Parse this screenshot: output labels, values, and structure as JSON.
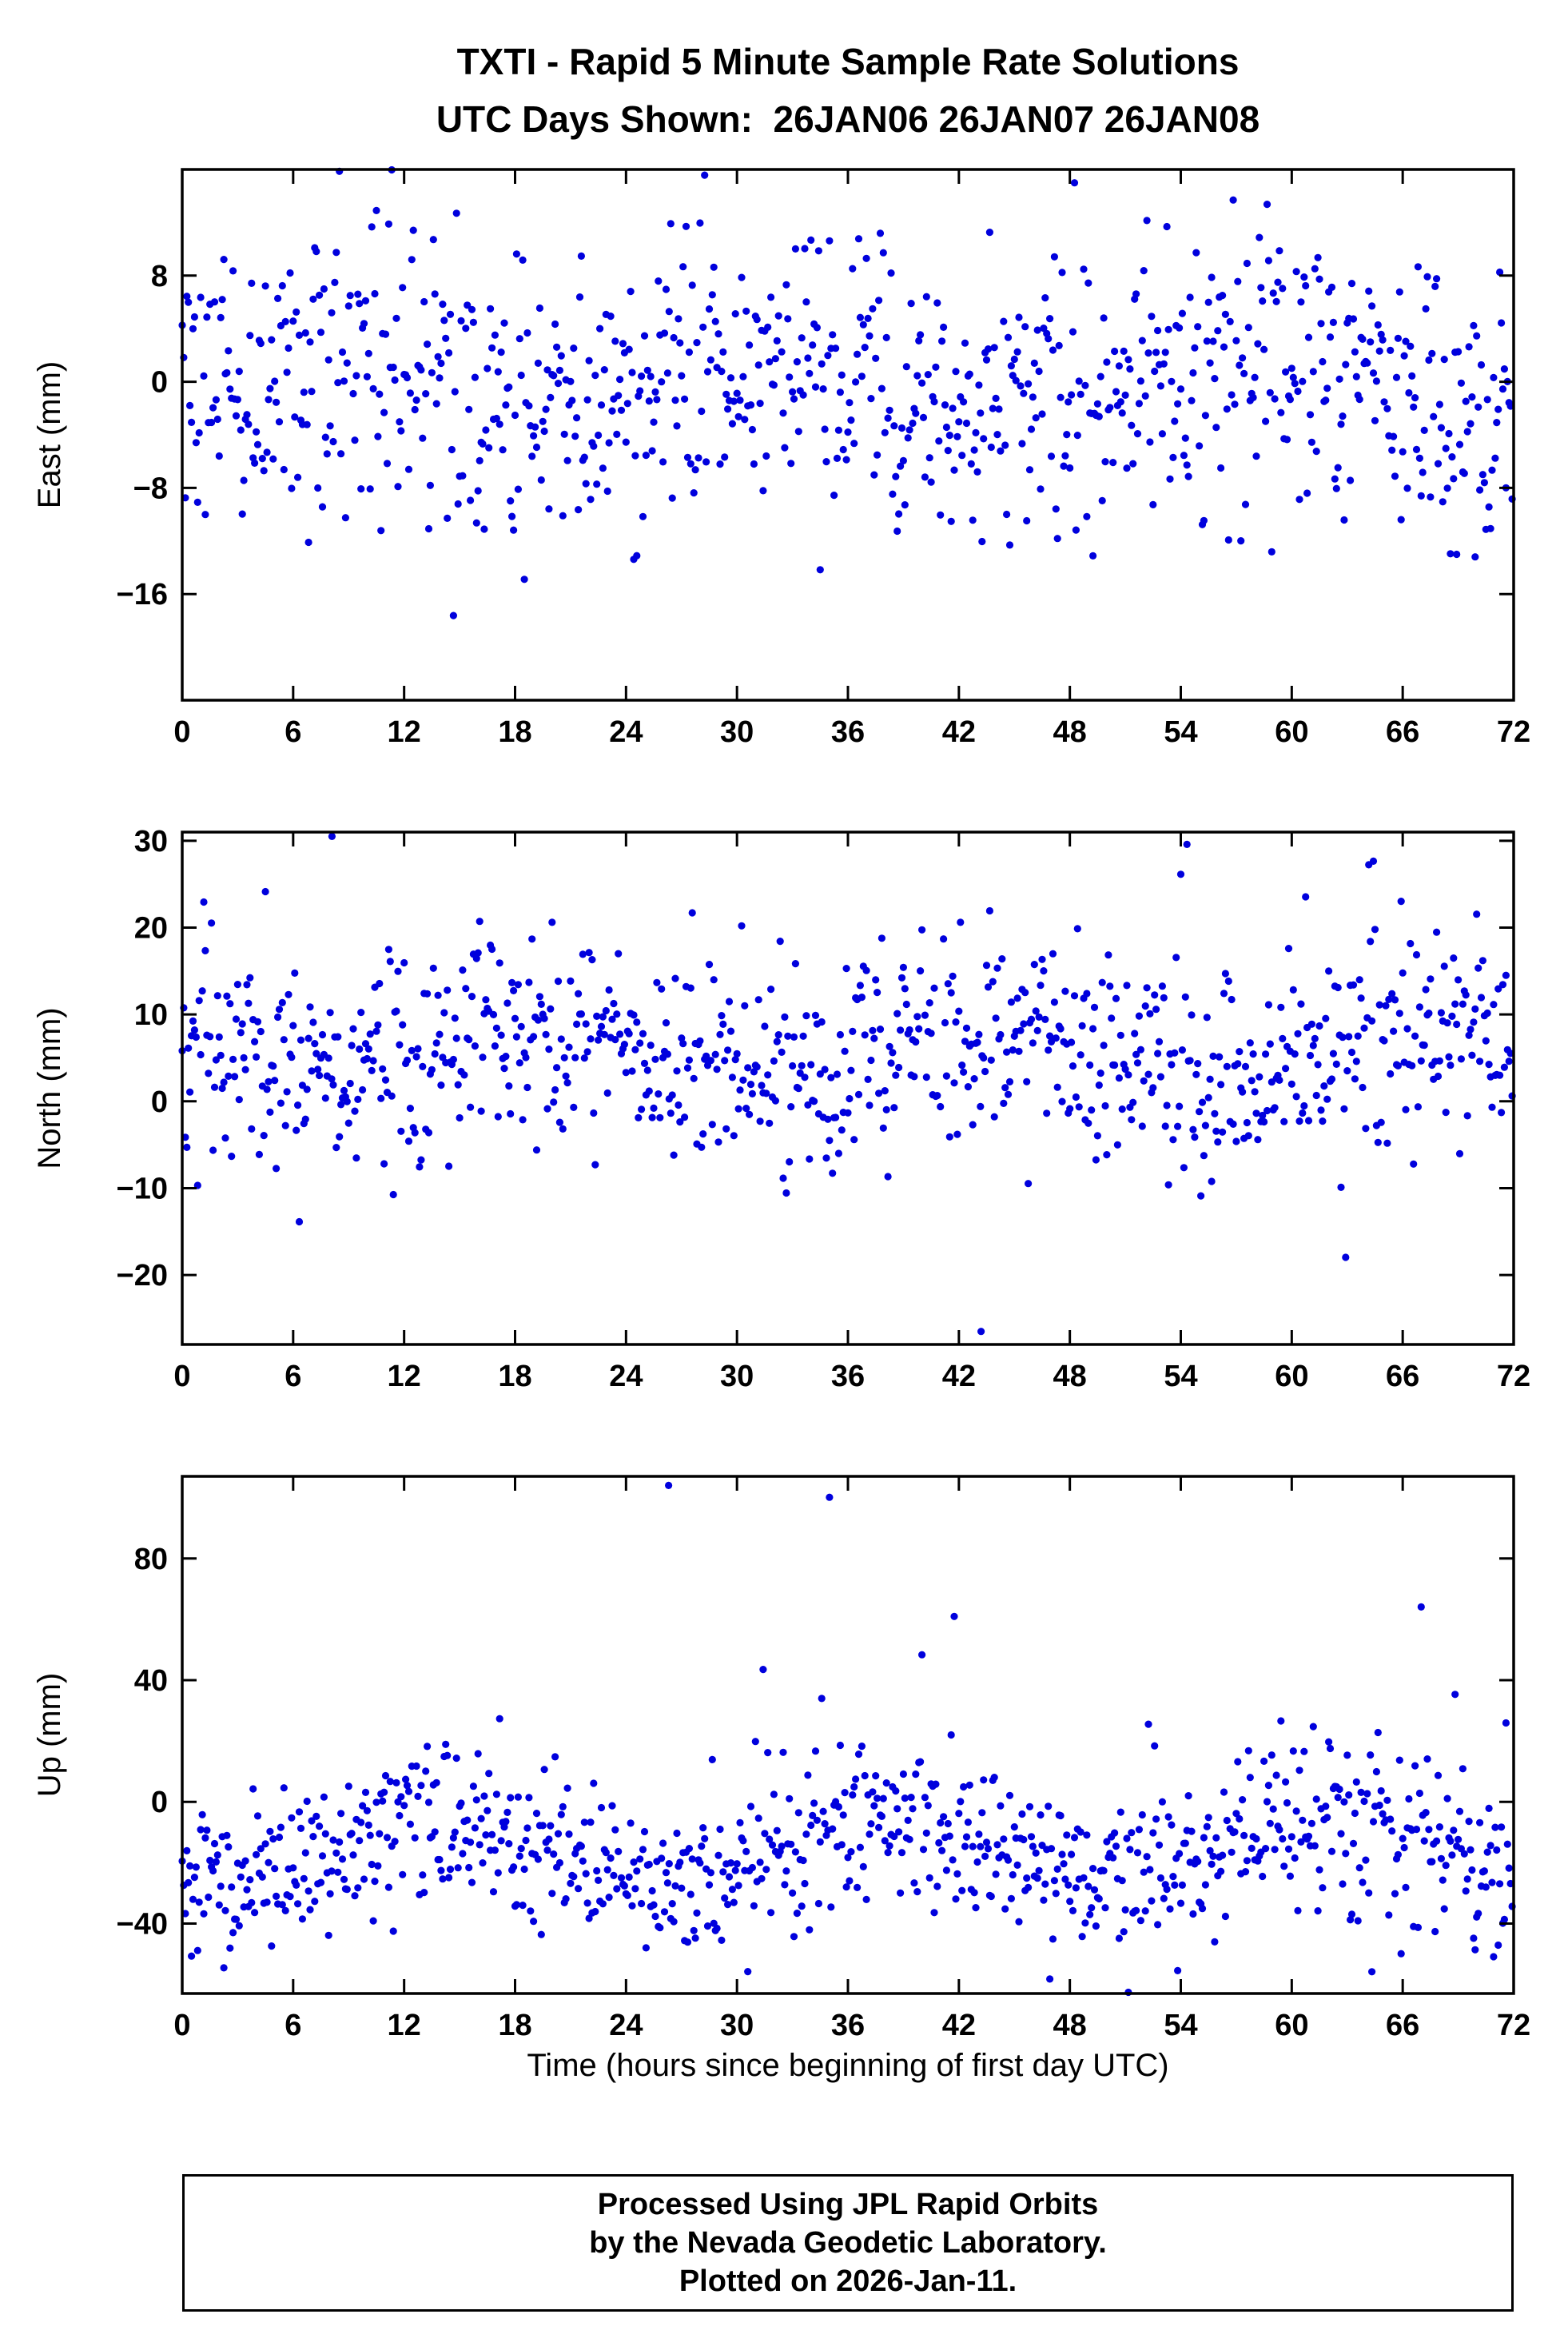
{
  "title": {
    "line1": "TXTI - Rapid 5 Minute Sample Rate Solutions",
    "line2": "UTC Days Shown:  26JAN06 26JAN07 26JAN08"
  },
  "footer": {
    "line1": "Processed Using JPL Rapid Orbits",
    "line2": "by the Nevada Geodetic Laboratory.",
    "line3": "Plotted on 2026-Jan-11."
  },
  "chart_data": {
    "type": "scatter",
    "station": "TXTI",
    "utc_days_shown": [
      "26JAN06",
      "26JAN07",
      "26JAN08"
    ],
    "xlabel": "Time (hours since beginning of first day UTC)",
    "x_range": [
      0,
      72
    ],
    "x_ticks": [
      0,
      6,
      12,
      18,
      24,
      30,
      36,
      42,
      48,
      54,
      60,
      66,
      72
    ],
    "point_color": "#0000DD",
    "point_radius_px": 4.6,
    "sample_interval_minutes": 5,
    "points_per_panel": 864,
    "grid": false,
    "legend": "none",
    "panels": [
      {
        "name": "East",
        "ylabel": "East (mm)",
        "ylim": [
          -24,
          16
        ],
        "yticks": [
          -16,
          -8,
          0,
          8
        ],
        "mean": -0.5,
        "sigma": 5.2,
        "diurnal_amplitude": 1.5,
        "diurnal_phase_hours": 3,
        "outlier_rate": 0.03,
        "outlier_scale": 2.2,
        "seed": 20060126,
        "extra_outliers": []
      },
      {
        "name": "North",
        "ylabel": "North (mm)",
        "ylim": [
          -28,
          31
        ],
        "yticks": [
          -20,
          -10,
          0,
          10,
          20,
          30
        ],
        "mean": 5.5,
        "sigma": 5.8,
        "diurnal_amplitude": 2.0,
        "diurnal_phase_hours": 14,
        "outlier_rate": 0.03,
        "outlier_scale": 2.2,
        "seed": 20070126,
        "extra_outliers": [
          {
            "x": 8.1,
            "y": 30.5
          },
          {
            "x": 43.2,
            "y": -26.5
          }
        ]
      },
      {
        "name": "Up",
        "ylabel": "Up (mm)",
        "ylim": [
          -63,
          107
        ],
        "yticks": [
          -40,
          0,
          40,
          80
        ],
        "mean": -16,
        "sigma": 13,
        "diurnal_amplitude": 11,
        "diurnal_phase_hours": 8,
        "outlier_rate": 0.04,
        "outlier_scale": 2.0,
        "seed": 20080126,
        "extra_outliers": [
          {
            "x": 26.3,
            "y": 104
          }
        ]
      }
    ]
  }
}
